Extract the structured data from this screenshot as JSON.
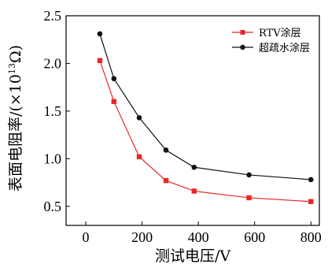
{
  "chart_data": {
    "type": "line",
    "xlabel": "测试电压/V",
    "ylabel_main": "表面电阻率/(×10",
    "ylabel_exp": "13",
    "ylabel_tail": "Ω)",
    "xlim": [
      -70,
      830
    ],
    "ylim": [
      0.3,
      2.5
    ],
    "xticks": [
      0,
      200,
      400,
      600,
      800
    ],
    "yticks": [
      0.5,
      1.0,
      1.5,
      2.0,
      2.5
    ],
    "xtick_labels": [
      "0",
      "200",
      "400",
      "600",
      "800"
    ],
    "ytick_labels": [
      "0.5",
      "1.0",
      "1.5",
      "2.0",
      "2.5"
    ],
    "grid": false,
    "legend_position": "top-right",
    "series": [
      {
        "name": "RTV涂层",
        "color": "#e8262a",
        "marker": "square",
        "x": [
          50,
          100,
          190,
          285,
          385,
          580,
          800
        ],
        "y": [
          2.03,
          1.6,
          1.02,
          0.77,
          0.66,
          0.59,
          0.55
        ]
      },
      {
        "name": "超疏水涂层",
        "color": "#111111",
        "marker": "circle",
        "x": [
          50,
          100,
          190,
          285,
          385,
          580,
          800
        ],
        "y": [
          2.31,
          1.84,
          1.43,
          1.09,
          0.91,
          0.83,
          0.78
        ]
      }
    ]
  }
}
